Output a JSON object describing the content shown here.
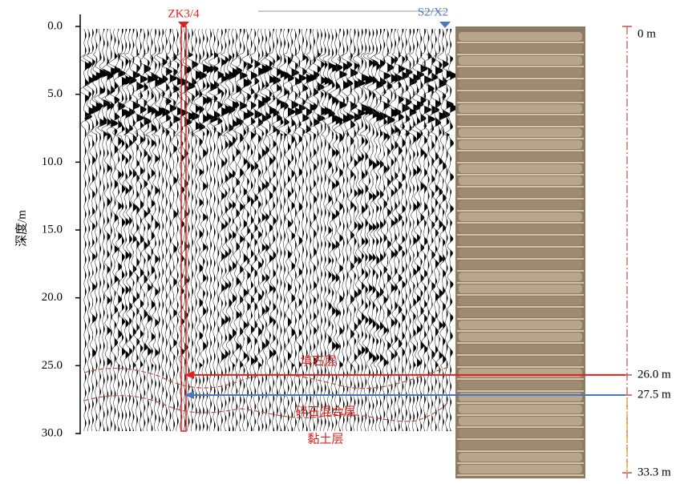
{
  "axis": {
    "label": "深度/m",
    "ylim": [
      0,
      30
    ],
    "yticks": [
      {
        "value": 0,
        "label": "0.0"
      },
      {
        "value": 5,
        "label": "5.0"
      },
      {
        "value": 10,
        "label": "10.0"
      },
      {
        "value": 15,
        "label": "15.0"
      },
      {
        "value": 20,
        "label": "20.0"
      },
      {
        "value": 25,
        "label": "25.0"
      },
      {
        "value": 30,
        "label": "30.0"
      }
    ]
  },
  "boreholes": [
    {
      "label": "ZK3/4",
      "color": "#e0201c"
    },
    {
      "label": "S2/X2",
      "color": "#4a78c0"
    }
  ],
  "layers": [
    "填石层",
    "碎石混合层",
    "黏土层"
  ],
  "core_scale": {
    "marks": [
      {
        "value": 0,
        "label": "0 m"
      },
      {
        "value": 26.0,
        "label": "26.0 m"
      },
      {
        "value": 27.5,
        "label": "27.5 m"
      },
      {
        "value": 33.3,
        "label": "33.3 m"
      }
    ]
  }
}
